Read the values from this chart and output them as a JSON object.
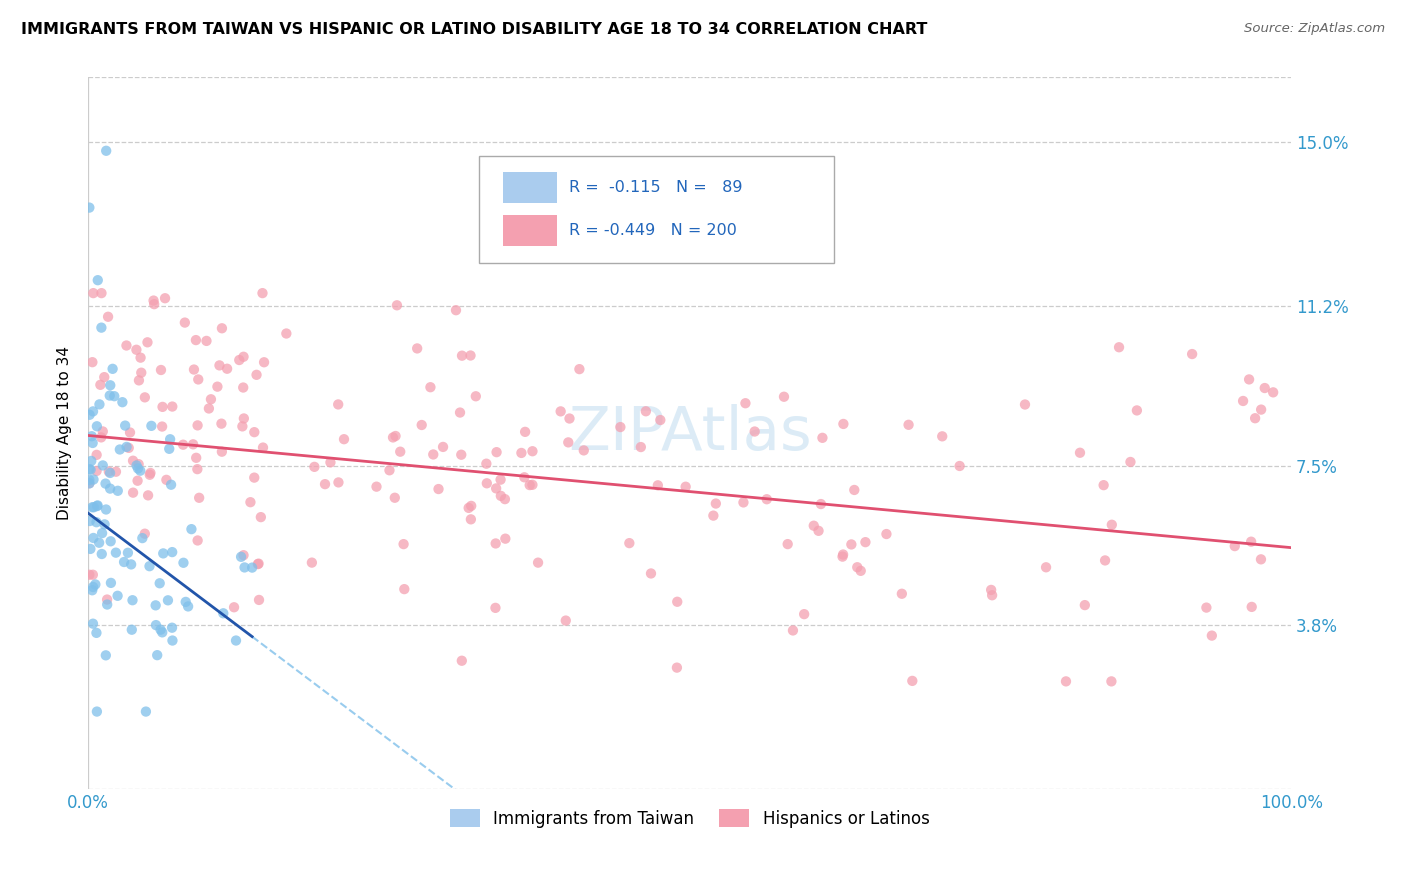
{
  "title": "IMMIGRANTS FROM TAIWAN VS HISPANIC OR LATINO DISABILITY AGE 18 TO 34 CORRELATION CHART",
  "source": "Source: ZipAtlas.com",
  "ylabel": "Disability Age 18 to 34",
  "ytick_labels": [
    "3.8%",
    "7.5%",
    "11.2%",
    "15.0%"
  ],
  "ytick_values": [
    0.038,
    0.075,
    0.112,
    0.15
  ],
  "xmin": 0.0,
  "xmax": 1.0,
  "ymin": 0.0,
  "ymax": 0.165,
  "taiwan_color": "#7fbfea",
  "hispanic_color": "#f4a0b0",
  "taiwan_line_color": "#2255aa",
  "hispanic_line_color": "#e05070",
  "taiwan_dash_color": "#99ccee",
  "watermark": "ZIPAtlas",
  "taiwan_R": -0.115,
  "taiwan_N": 89,
  "hispanic_R": -0.449,
  "hispanic_N": 200,
  "legend_box_color": "#aaccee",
  "legend_pink_color": "#f4a0b0",
  "taiwan_intercept": 0.064,
  "taiwan_slope": -0.21,
  "hispanic_intercept": 0.082,
  "hispanic_slope": -0.026
}
